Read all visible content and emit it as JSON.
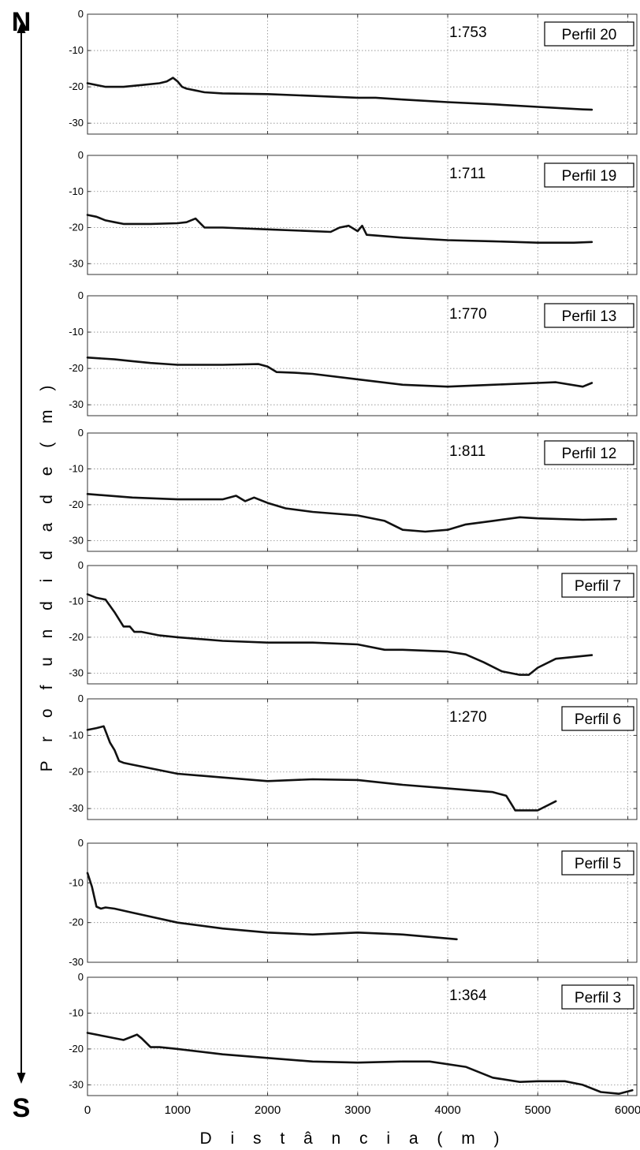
{
  "compass": {
    "north": "N",
    "south": "S"
  },
  "y_axis_label": "P r o f u n d i d a d e ( m )",
  "x_axis_label": "D i s t â n c i a ( m )",
  "chart_data": [
    {
      "type": "line",
      "title": "Perfil 20",
      "scale": "1:753",
      "xlim": [
        0,
        6100
      ],
      "ylim": [
        -33,
        0
      ],
      "yticks": [
        0,
        -10,
        -20,
        -30
      ],
      "grid": true,
      "series": [
        {
          "x": [
            0,
            200,
            400,
            600,
            800,
            880,
            950,
            1000,
            1050,
            1100,
            1200,
            1300,
            1500,
            2000,
            2500,
            3000,
            3200,
            3500,
            4000,
            4500,
            5000,
            5500,
            5600
          ],
          "y": [
            -19,
            -20,
            -20,
            -19.5,
            -19,
            -18.5,
            -17.5,
            -18.5,
            -20,
            -20.5,
            -21,
            -21.5,
            -21.8,
            -22,
            -22.5,
            -23,
            -23,
            -23.5,
            -24.2,
            -24.8,
            -25.5,
            -26.2,
            -26.3
          ]
        }
      ]
    },
    {
      "type": "line",
      "title": "Perfil 19",
      "scale": "1:711",
      "xlim": [
        0,
        6100
      ],
      "ylim": [
        -33,
        0
      ],
      "yticks": [
        0,
        -10,
        -20,
        -30
      ],
      "grid": true,
      "series": [
        {
          "x": [
            0,
            100,
            200,
            300,
            400,
            500,
            700,
            1000,
            1100,
            1200,
            1300,
            1500,
            2000,
            2500,
            2700,
            2800,
            2900,
            3000,
            3050,
            3100,
            3200,
            3500,
            4000,
            4500,
            5000,
            5400,
            5600
          ],
          "y": [
            -16.5,
            -17,
            -18,
            -18.5,
            -19,
            -19,
            -19,
            -18.8,
            -18.5,
            -17.5,
            -20,
            -20,
            -20.5,
            -21,
            -21.2,
            -20,
            -19.5,
            -21,
            -19.5,
            -22,
            -22.2,
            -22.8,
            -23.5,
            -23.8,
            -24.2,
            -24.2,
            -24
          ]
        }
      ]
    },
    {
      "type": "line",
      "title": "Perfil 13",
      "scale": "1:770",
      "xlim": [
        0,
        6100
      ],
      "ylim": [
        -33,
        0
      ],
      "yticks": [
        0,
        -10,
        -20,
        -30
      ],
      "grid": true,
      "series": [
        {
          "x": [
            0,
            300,
            500,
            700,
            1000,
            1500,
            1900,
            2000,
            2100,
            2300,
            2500,
            3000,
            3500,
            4000,
            4500,
            5000,
            5200,
            5500,
            5600
          ],
          "y": [
            -17,
            -17.5,
            -18,
            -18.5,
            -19,
            -19,
            -18.8,
            -19.5,
            -21,
            -21.2,
            -21.5,
            -23,
            -24.5,
            -25,
            -24.5,
            -24,
            -23.8,
            -25,
            -24
          ]
        }
      ]
    },
    {
      "type": "line",
      "title": "Perfil 12",
      "scale": "1:811",
      "xlim": [
        0,
        6100
      ],
      "ylim": [
        -33,
        0
      ],
      "yticks": [
        0,
        -10,
        -20,
        -30
      ],
      "grid": true,
      "series": [
        {
          "x": [
            0,
            500,
            1000,
            1500,
            1650,
            1750,
            1850,
            2000,
            2200,
            2500,
            3000,
            3300,
            3500,
            3750,
            4000,
            4200,
            4500,
            4800,
            5000,
            5500,
            5870
          ],
          "y": [
            -17,
            -18,
            -18.5,
            -18.5,
            -17.5,
            -19,
            -18,
            -19.5,
            -21,
            -22,
            -23,
            -24.5,
            -27,
            -27.5,
            -27,
            -25.5,
            -24.5,
            -23.5,
            -23.8,
            -24.2,
            -24
          ]
        }
      ]
    },
    {
      "type": "line",
      "title": "Perfil 7",
      "scale": "",
      "xlim": [
        0,
        6100
      ],
      "ylim": [
        -33,
        0
      ],
      "yticks": [
        0,
        -10,
        -20,
        -30
      ],
      "grid": true,
      "series": [
        {
          "x": [
            0,
            100,
            200,
            300,
            400,
            470,
            520,
            600,
            800,
            1000,
            1500,
            2000,
            2500,
            3000,
            3300,
            3500,
            4000,
            4200,
            4400,
            4600,
            4800,
            4900,
            5000,
            5200,
            5600
          ],
          "y": [
            -8,
            -9,
            -9.5,
            -13,
            -17,
            -17,
            -18.5,
            -18.5,
            -19.5,
            -20,
            -21,
            -21.5,
            -21.5,
            -22,
            -23.5,
            -23.5,
            -24,
            -24.8,
            -27,
            -29.5,
            -30.5,
            -30.5,
            -28.5,
            -26,
            -25
          ]
        }
      ]
    },
    {
      "type": "line",
      "title": "Perfil 6",
      "scale": "1:270",
      "xlim": [
        0,
        6100
      ],
      "ylim": [
        -33,
        0
      ],
      "yticks": [
        0,
        -10,
        -20,
        -30
      ],
      "grid": true,
      "series": [
        {
          "x": [
            0,
            100,
            180,
            250,
            300,
            350,
            400,
            500,
            1000,
            1500,
            2000,
            2500,
            3000,
            3500,
            4000,
            4500,
            4650,
            4700,
            4750,
            5000,
            5200
          ],
          "y": [
            -8.5,
            -8,
            -7.5,
            -12,
            -14,
            -17,
            -17.5,
            -18,
            -20.5,
            -21.5,
            -22.5,
            -22,
            -22.2,
            -23.5,
            -24.5,
            -25.5,
            -26.5,
            -28.5,
            -30.5,
            -30.5,
            -28
          ]
        }
      ]
    },
    {
      "type": "line",
      "title": "Perfil 5",
      "scale": "",
      "xlim": [
        0,
        6100
      ],
      "ylim": [
        -30,
        0
      ],
      "yticks": [
        0,
        -10,
        -20,
        -30
      ],
      "grid": true,
      "series": [
        {
          "x": [
            0,
            50,
            100,
            150,
            200,
            300,
            500,
            1000,
            1500,
            2000,
            2500,
            3000,
            3500,
            4000,
            4100
          ],
          "y": [
            -7.5,
            -11,
            -16,
            -16.5,
            -16.2,
            -16.5,
            -17.5,
            -20,
            -21.5,
            -22.5,
            -23,
            -22.5,
            -23,
            -24,
            -24.2
          ]
        }
      ]
    },
    {
      "type": "line",
      "title": "Perfil 3",
      "scale": "1:364",
      "xlim": [
        0,
        6100
      ],
      "ylim": [
        -33,
        0
      ],
      "yticks": [
        0,
        -10,
        -20,
        -30
      ],
      "grid": true,
      "series": [
        {
          "x": [
            0,
            200,
            400,
            500,
            550,
            600,
            700,
            800,
            1000,
            1500,
            2000,
            2500,
            3000,
            3500,
            3800,
            4200,
            4500,
            4800,
            5000,
            5300,
            5500,
            5700,
            5900,
            6050
          ],
          "y": [
            -15.5,
            -16.5,
            -17.5,
            -16.5,
            -16,
            -17,
            -19.5,
            -19.5,
            -20,
            -21.5,
            -22.5,
            -23.5,
            -23.8,
            -23.5,
            -23.5,
            -25,
            -28,
            -29.2,
            -29,
            -29,
            -30,
            -32,
            -32.5,
            -31.5
          ]
        }
      ]
    }
  ],
  "x_axis": {
    "ticks": [
      0,
      1000,
      2000,
      3000,
      4000,
      5000,
      6000
    ],
    "tick_labels": [
      "0",
      "1000",
      "2000",
      "3000",
      "4000",
      "5000",
      "6000"
    ]
  }
}
